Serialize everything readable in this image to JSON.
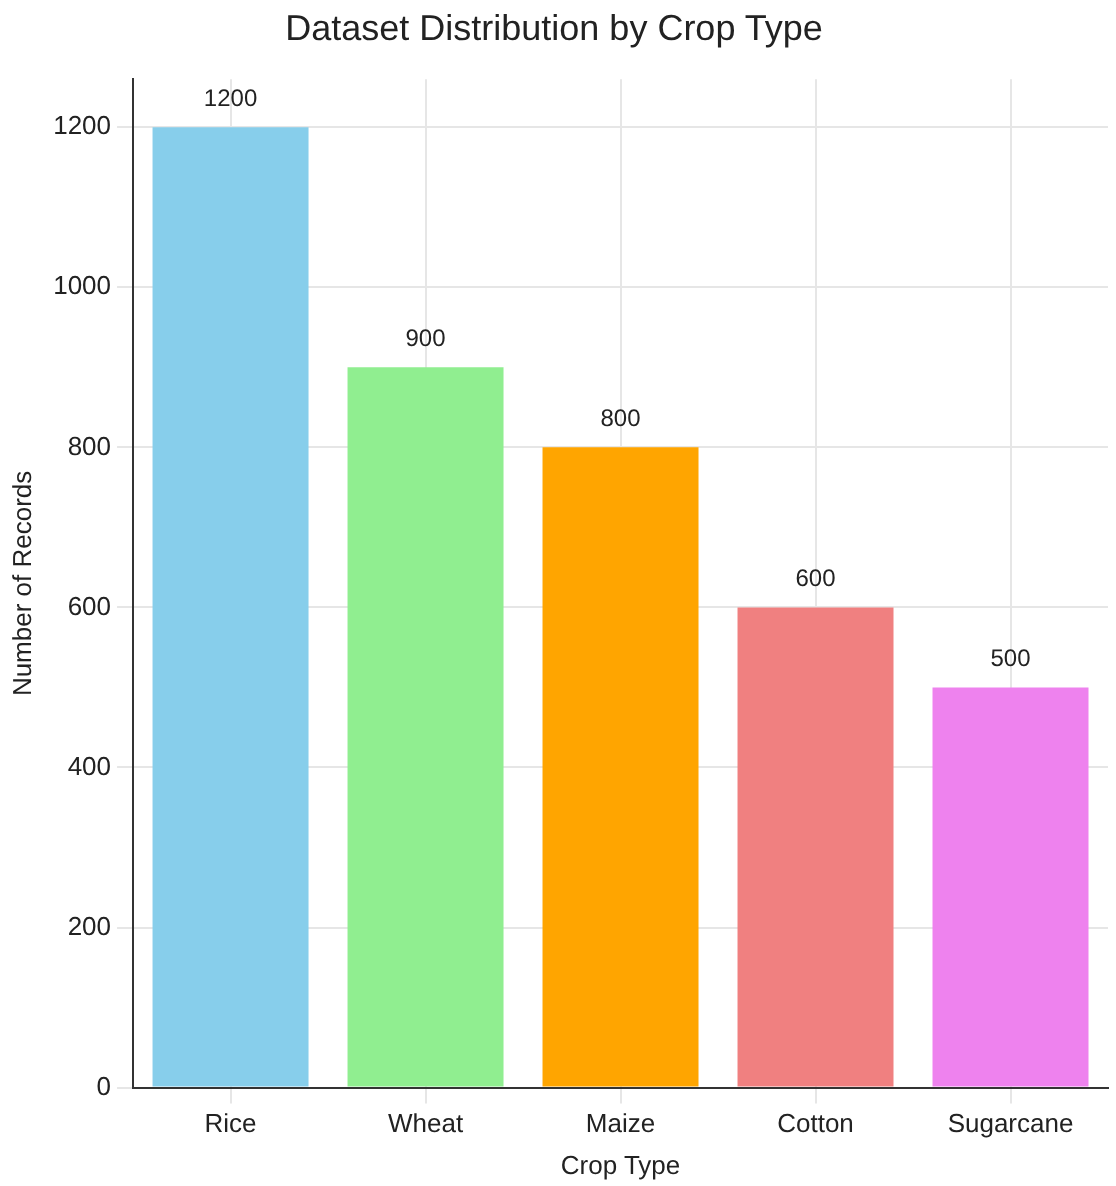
{
  "chart_data": {
    "type": "bar",
    "title": "Dataset Distribution by Crop Type",
    "xlabel": "Crop Type",
    "ylabel": "Number of Records",
    "categories": [
      "Rice",
      "Wheat",
      "Maize",
      "Cotton",
      "Sugarcane"
    ],
    "values": [
      1200,
      900,
      800,
      600,
      500
    ],
    "colors": [
      "#87ceeb",
      "#90ee90",
      "#ffa500",
      "#f08080",
      "#ee82ee"
    ],
    "ylim": [
      0,
      1260
    ],
    "yticks": [
      0,
      200,
      400,
      600,
      800,
      1000,
      1200
    ],
    "grid": true,
    "data_labels": true
  }
}
